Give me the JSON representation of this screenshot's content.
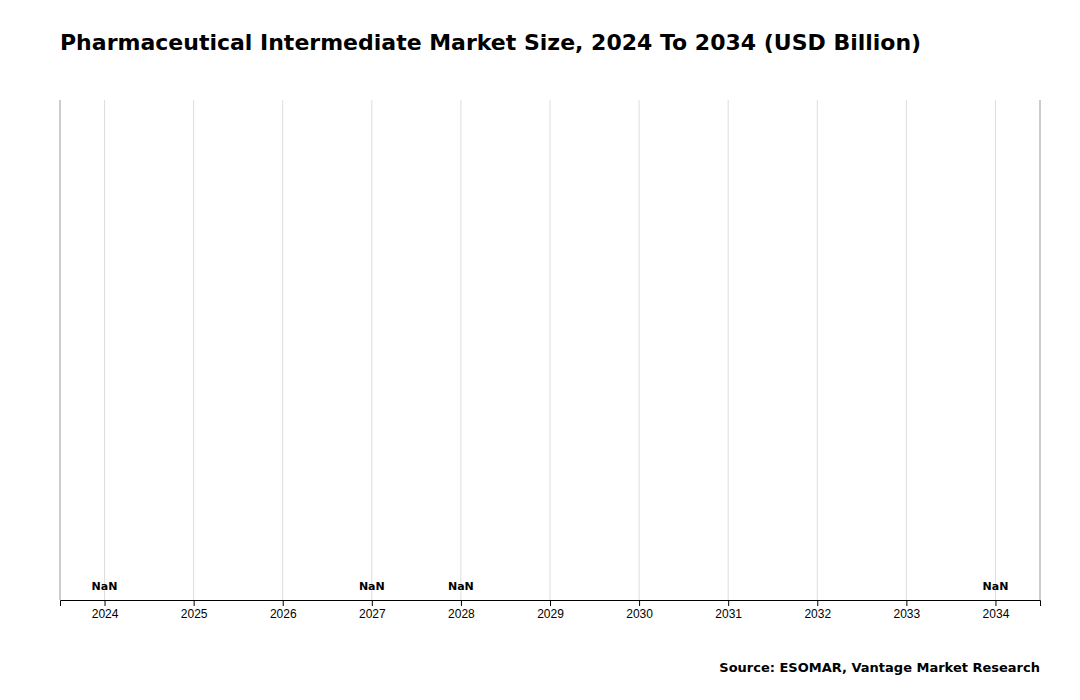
{
  "chart_data": {
    "type": "bar",
    "title": "Pharmaceutical Intermediate Market Size, 2024 To 2034 (USD Billion)",
    "x": [
      2024,
      2025,
      2026,
      2027,
      2028,
      2029,
      2030,
      2031,
      2032,
      2033,
      2034
    ],
    "values": [
      null,
      null,
      null,
      null,
      null,
      null,
      null,
      null,
      null,
      null,
      null
    ],
    "value_labels": [
      "NaN",
      null,
      null,
      "NaN",
      "NaN",
      null,
      null,
      null,
      null,
      null,
      "NaN"
    ],
    "data_labels": true,
    "xlim": [
      2023.5,
      2034.5
    ],
    "xticks": [
      2024,
      2025,
      2026,
      2027,
      2028,
      2029,
      2030,
      2031,
      2032,
      2033,
      2034
    ],
    "ylim": [
      0,
      1
    ],
    "tick_labels": "x",
    "grid": true,
    "annotations": [
      "Source: ESOMAR, Vantage Market Research"
    ]
  }
}
